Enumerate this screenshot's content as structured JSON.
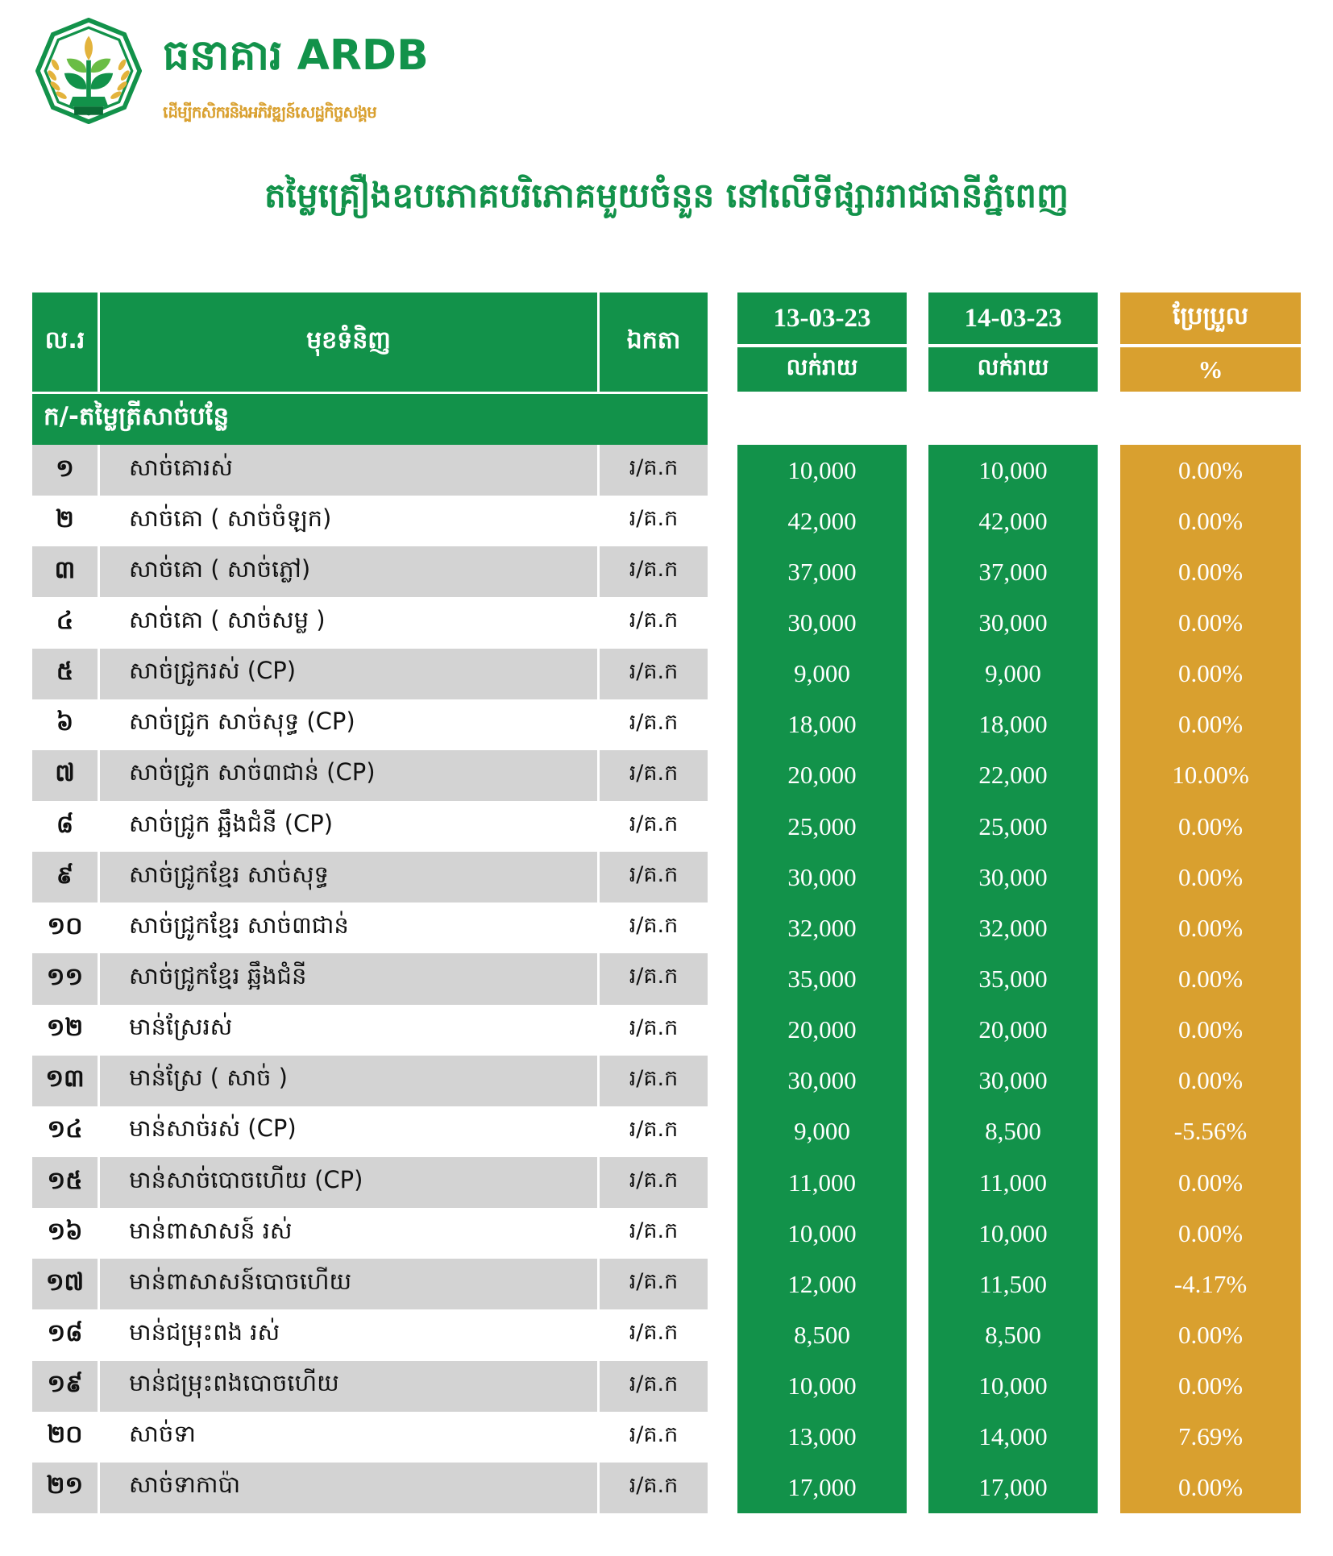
{
  "brand": {
    "name": "ធនាគារ ARDB",
    "tagline": "ដើម្បីកសិករនិងអភិវឌ្ឍន៍សេដ្ឋកិច្ចសង្គម",
    "logo_badge": "ធ.អ.ជ.ក"
  },
  "title": "តម្លៃគ្រឿងឧបភោគបរិភោគមួយចំនួន នៅលើទីផ្សាររាជធានីភ្នំពេញ",
  "colors": {
    "green": "#12924A",
    "gold": "#D9A02F",
    "row_gray": "#D3D3D3"
  },
  "table": {
    "col_no": "ល.រ",
    "col_item": "មុខទំនិញ",
    "col_unit": "ឯកតា",
    "date1": "13-03-23",
    "date2": "14-03-23",
    "retail1": "លក់រាយ",
    "retail2": "លក់រាយ",
    "change_label": "ប្រែប្រួល",
    "change_unit": "%",
    "section": "ក/-តម្លៃត្រីសាច់បន្លែ",
    "rows": [
      {
        "no": "១",
        "item": "សាច់គោរស់",
        "unit": "រ/គ.ក",
        "p1": "10,000",
        "p2": "10,000",
        "chg": "0.00%"
      },
      {
        "no": "២",
        "item": "សាច់គោ ( សាច់ចំឡក)",
        "unit": "រ/គ.ក",
        "p1": "42,000",
        "p2": "42,000",
        "chg": "0.00%"
      },
      {
        "no": "៣",
        "item": "សាច់គោ ( សាច់ភ្លៅ)",
        "unit": "រ/គ.ក",
        "p1": "37,000",
        "p2": "37,000",
        "chg": "0.00%"
      },
      {
        "no": "៤",
        "item": "សាច់គោ ( សាច់សម្ល )",
        "unit": "រ/គ.ក",
        "p1": "30,000",
        "p2": "30,000",
        "chg": "0.00%"
      },
      {
        "no": "៥",
        "item": "សាច់ជ្រូករស់ (CP)",
        "unit": "រ/គ.ក",
        "p1": "9,000",
        "p2": "9,000",
        "chg": "0.00%"
      },
      {
        "no": "៦",
        "item": "សាច់ជ្រូក សាច់សុទ្ធ (CP)",
        "unit": "រ/គ.ក",
        "p1": "18,000",
        "p2": "18,000",
        "chg": "0.00%"
      },
      {
        "no": "៧",
        "item": "សាច់ជ្រូក សាច់៣ជាន់ (CP)",
        "unit": "រ/គ.ក",
        "p1": "20,000",
        "p2": "22,000",
        "chg": "10.00%"
      },
      {
        "no": "៨",
        "item": "សាច់ជ្រូក ឆ្អឹងជំនី (CP)",
        "unit": "រ/គ.ក",
        "p1": "25,000",
        "p2": "25,000",
        "chg": "0.00%"
      },
      {
        "no": "៩",
        "item": "សាច់ជ្រូកខ្មែរ សាច់សុទ្ធ",
        "unit": "រ/គ.ក",
        "p1": "30,000",
        "p2": "30,000",
        "chg": "0.00%"
      },
      {
        "no": "១០",
        "item": "សាច់ជ្រូកខ្មែរ សាច់៣ជាន់",
        "unit": "រ/គ.ក",
        "p1": "32,000",
        "p2": "32,000",
        "chg": "0.00%"
      },
      {
        "no": "១១",
        "item": "សាច់ជ្រូកខ្មែរ ឆ្អឹងជំនី",
        "unit": "រ/គ.ក",
        "p1": "35,000",
        "p2": "35,000",
        "chg": "0.00%"
      },
      {
        "no": "១២",
        "item": "មាន់ស្រែរស់",
        "unit": "រ/គ.ក",
        "p1": "20,000",
        "p2": "20,000",
        "chg": "0.00%"
      },
      {
        "no": "១៣",
        "item": "មាន់ស្រែ ( សាច់ )",
        "unit": "រ/គ.ក",
        "p1": "30,000",
        "p2": "30,000",
        "chg": "0.00%"
      },
      {
        "no": "១៤",
        "item": "មាន់សាច់រស់ (CP)",
        "unit": "រ/គ.ក",
        "p1": "9,000",
        "p2": "8,500",
        "chg": "-5.56%"
      },
      {
        "no": "១៥",
        "item": "មាន់សាច់បោចហើយ (CP)",
        "unit": "រ/គ.ក",
        "p1": "11,000",
        "p2": "11,000",
        "chg": "0.00%"
      },
      {
        "no": "១៦",
        "item": "មាន់ពាសាសន៍ រស់",
        "unit": "រ/គ.ក",
        "p1": "10,000",
        "p2": "10,000",
        "chg": "0.00%"
      },
      {
        "no": "១៧",
        "item": "មាន់ពាសាសន៍បោចហើយ",
        "unit": "រ/គ.ក",
        "p1": "12,000",
        "p2": "11,500",
        "chg": "-4.17%"
      },
      {
        "no": "១៨",
        "item": "មាន់ជម្រុះពង រស់",
        "unit": "រ/គ.ក",
        "p1": "8,500",
        "p2": "8,500",
        "chg": "0.00%"
      },
      {
        "no": "១៩",
        "item": "មាន់ជម្រុះពងបោចហើយ",
        "unit": "រ/គ.ក",
        "p1": "10,000",
        "p2": "10,000",
        "chg": "0.00%"
      },
      {
        "no": "២០",
        "item": "សាច់ទា",
        "unit": "រ/គ.ក",
        "p1": "13,000",
        "p2": "14,000",
        "chg": "7.69%"
      },
      {
        "no": "២១",
        "item": "សាច់ទាកាប៉ា",
        "unit": "រ/គ.ក",
        "p1": "17,000",
        "p2": "17,000",
        "chg": "0.00%"
      }
    ]
  }
}
